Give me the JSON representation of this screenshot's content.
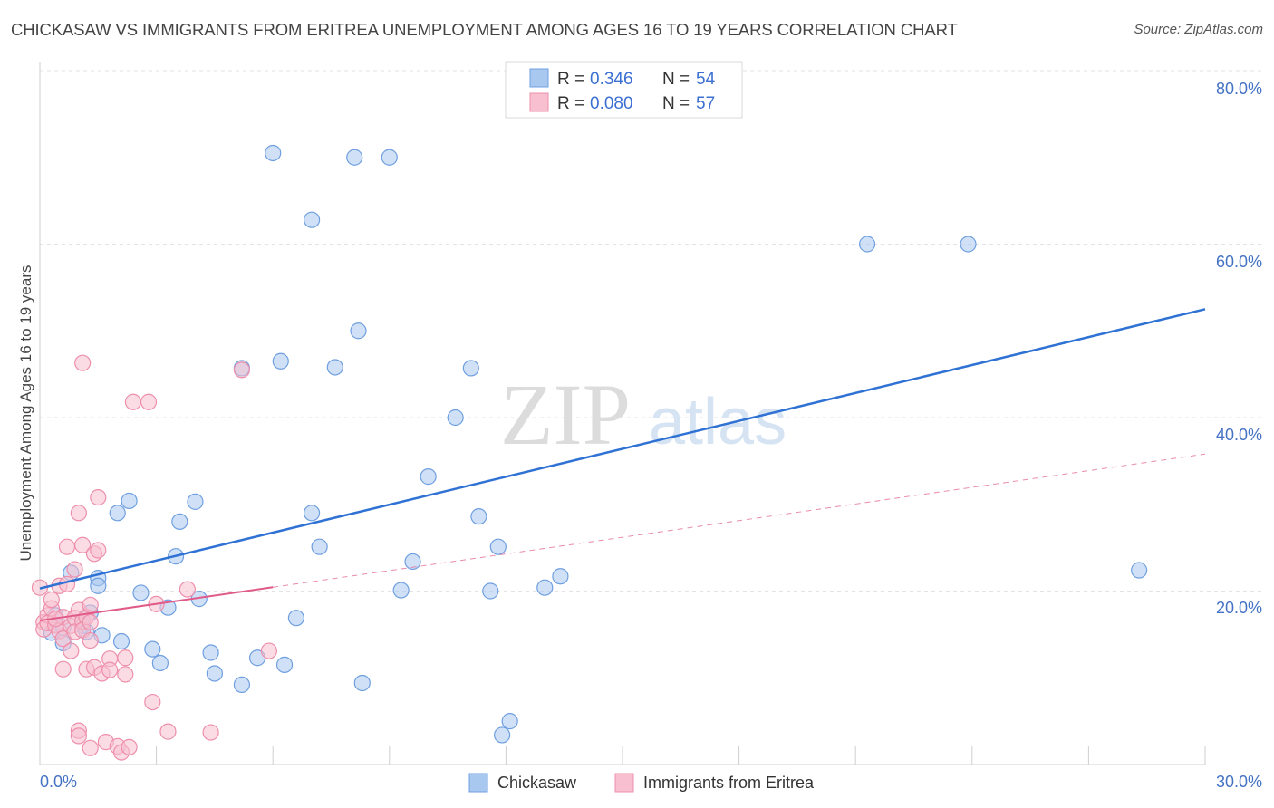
{
  "chart_data": {
    "type": "scatter",
    "title": "CHICKASAW VS IMMIGRANTS FROM ERITREA UNEMPLOYMENT AMONG AGES 16 TO 19 YEARS CORRELATION CHART",
    "source": "Source: ZipAtlas.com",
    "ylabel": "Unemployment Among Ages 16 to 19 years",
    "xlim": [
      0,
      30
    ],
    "ylim": [
      0,
      80
    ],
    "x_tick_labels": [
      "0.0%",
      "30.0%"
    ],
    "y_tick_labels": [
      "20.0%",
      "40.0%",
      "60.0%",
      "80.0%"
    ],
    "y_ticks": [
      20,
      40,
      60,
      80
    ],
    "watermark": {
      "zip": "ZIP",
      "atlas": "atlas"
    },
    "legend": {
      "label_r": "R =",
      "label_n": "N =",
      "entries": [
        {
          "r": "0.346",
          "n": "54"
        },
        {
          "r": "0.080",
          "n": "57"
        }
      ]
    },
    "series": [
      {
        "name": "Chickasaw",
        "color": "#a9c8f0",
        "stroke": "#6f9fe0",
        "line_color": "#2f72d4",
        "trend": {
          "x0": 0,
          "y0": 20.3,
          "x1": 30,
          "y1": 52.5,
          "dashed_from": null
        },
        "points": [
          [
            0.3,
            15.2
          ],
          [
            0.4,
            17.2
          ],
          [
            0.6,
            15.8
          ],
          [
            0.6,
            14.0
          ],
          [
            0.8,
            22.1
          ],
          [
            1.1,
            16.0
          ],
          [
            1.2,
            15.3
          ],
          [
            1.3,
            17.5
          ],
          [
            1.5,
            21.5
          ],
          [
            1.5,
            20.6
          ],
          [
            2.0,
            29.0
          ],
          [
            2.1,
            14.2
          ],
          [
            2.3,
            30.4
          ],
          [
            2.6,
            19.8
          ],
          [
            2.9,
            13.3
          ],
          [
            3.1,
            11.7
          ],
          [
            3.3,
            18.1
          ],
          [
            3.5,
            24.0
          ],
          [
            3.6,
            28.0
          ],
          [
            4.0,
            30.3
          ],
          [
            4.1,
            19.1
          ],
          [
            4.4,
            12.9
          ],
          [
            4.5,
            10.5
          ],
          [
            5.2,
            45.7
          ],
          [
            5.2,
            9.2
          ],
          [
            5.6,
            12.3
          ],
          [
            6.0,
            70.5
          ],
          [
            6.2,
            46.5
          ],
          [
            6.3,
            11.5
          ],
          [
            6.6,
            16.9
          ],
          [
            7.0,
            29.0
          ],
          [
            7.0,
            62.8
          ],
          [
            7.2,
            25.1
          ],
          [
            7.6,
            45.8
          ],
          [
            8.1,
            70.0
          ],
          [
            8.2,
            50.0
          ],
          [
            8.3,
            9.4
          ],
          [
            9.0,
            70.0
          ],
          [
            9.3,
            20.1
          ],
          [
            9.6,
            23.4
          ],
          [
            10.0,
            33.2
          ],
          [
            10.7,
            40.0
          ],
          [
            11.1,
            45.7
          ],
          [
            11.3,
            28.6
          ],
          [
            11.6,
            20.0
          ],
          [
            11.8,
            25.1
          ],
          [
            11.9,
            3.4
          ],
          [
            12.1,
            5.0
          ],
          [
            13.0,
            20.4
          ],
          [
            13.4,
            21.7
          ],
          [
            21.3,
            60.0
          ],
          [
            23.9,
            60.0
          ],
          [
            28.3,
            22.4
          ],
          [
            1.6,
            14.9
          ]
        ]
      },
      {
        "name": "Immigrants from Eritrea",
        "color": "#f8bfd0",
        "stroke": "#ee8fab",
        "line_color": "#e05a8a",
        "trend": {
          "x0": 0,
          "y0": 16.6,
          "x1": 30,
          "y1": 35.8,
          "solid_until": 6.0
        },
        "points": [
          [
            0.0,
            20.4
          ],
          [
            0.1,
            16.4
          ],
          [
            0.1,
            15.6
          ],
          [
            0.2,
            17.2
          ],
          [
            0.2,
            16.3
          ],
          [
            0.3,
            18.0
          ],
          [
            0.3,
            19.0
          ],
          [
            0.4,
            16.1
          ],
          [
            0.5,
            20.6
          ],
          [
            0.5,
            15.4
          ],
          [
            0.6,
            17.0
          ],
          [
            0.6,
            14.5
          ],
          [
            0.6,
            11.0
          ],
          [
            0.7,
            25.1
          ],
          [
            0.7,
            20.8
          ],
          [
            0.8,
            16.0
          ],
          [
            0.8,
            13.1
          ],
          [
            0.9,
            22.5
          ],
          [
            0.9,
            16.9
          ],
          [
            0.9,
            15.3
          ],
          [
            1.0,
            29.0
          ],
          [
            1.0,
            17.8
          ],
          [
            1.1,
            25.3
          ],
          [
            1.1,
            16.5
          ],
          [
            1.1,
            15.5
          ],
          [
            1.0,
            3.9
          ],
          [
            1.0,
            3.3
          ],
          [
            1.1,
            46.3
          ],
          [
            1.2,
            17.0
          ],
          [
            1.2,
            11.0
          ],
          [
            1.3,
            18.4
          ],
          [
            1.3,
            16.4
          ],
          [
            1.3,
            14.3
          ],
          [
            1.3,
            1.9
          ],
          [
            1.4,
            24.3
          ],
          [
            1.4,
            11.2
          ],
          [
            1.5,
            24.7
          ],
          [
            1.5,
            30.8
          ],
          [
            1.6,
            10.5
          ],
          [
            1.7,
            2.6
          ],
          [
            1.8,
            12.2
          ],
          [
            1.8,
            10.9
          ],
          [
            2.0,
            2.1
          ],
          [
            2.1,
            1.4
          ],
          [
            2.2,
            10.4
          ],
          [
            2.2,
            12.3
          ],
          [
            2.3,
            2.0
          ],
          [
            2.4,
            41.8
          ],
          [
            2.8,
            41.8
          ],
          [
            2.9,
            7.2
          ],
          [
            3.0,
            18.5
          ],
          [
            3.3,
            3.8
          ],
          [
            3.8,
            20.2
          ],
          [
            4.4,
            3.7
          ],
          [
            5.2,
            45.5
          ],
          [
            5.9,
            13.1
          ],
          [
            0.4,
            16.8
          ]
        ]
      }
    ]
  }
}
